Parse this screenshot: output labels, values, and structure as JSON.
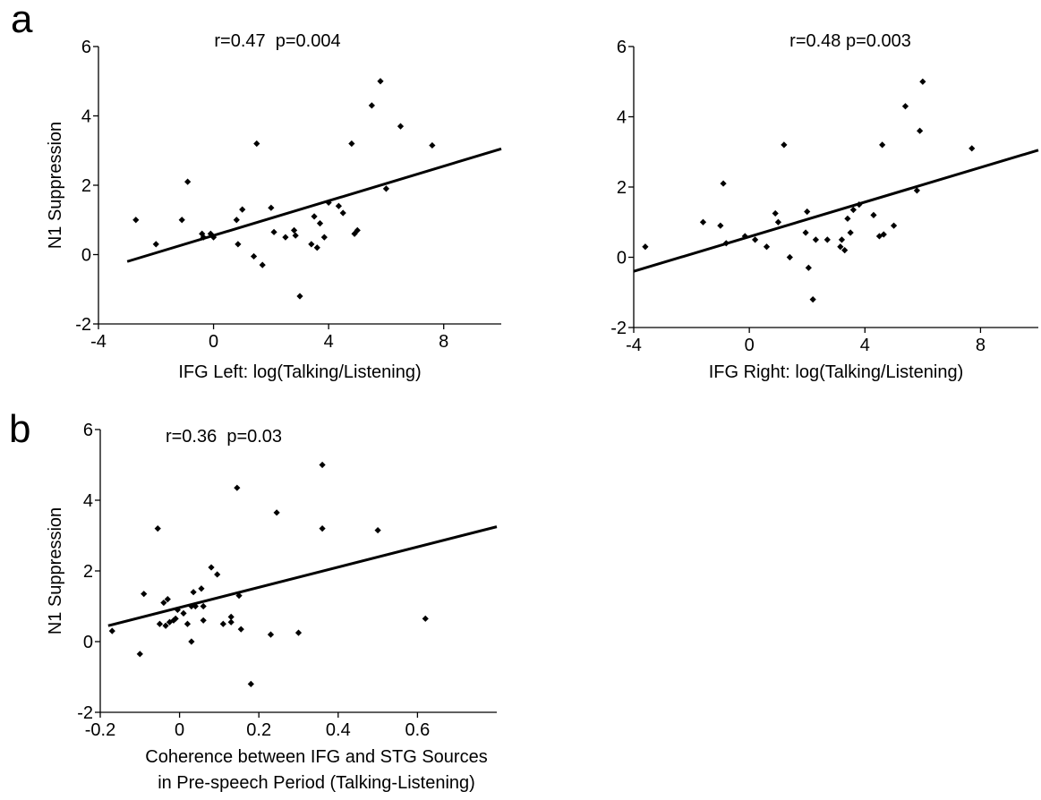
{
  "panel_labels": {
    "a": "a",
    "b": "b"
  },
  "chart_data": [
    {
      "type": "scatter",
      "panel": "a",
      "annotation": "r=0.47  p=0.004",
      "xlabel": "IFG Left: log(Talking/Listening)",
      "ylabel": "N1 Suppression",
      "xlim": [
        -4,
        10
      ],
      "ylim": [
        -2,
        6
      ],
      "xticks": [
        -4,
        0,
        4,
        8
      ],
      "yticks": [
        -2,
        0,
        2,
        4,
        6
      ],
      "xtick_labels": [
        "-4",
        "0",
        "4",
        "8"
      ],
      "ytick_labels": [
        "-2",
        "0",
        "2",
        "4",
        "6"
      ],
      "grid": false,
      "marker_color": "#000000",
      "points": [
        [
          -2.7,
          1.0
        ],
        [
          -2.0,
          0.3
        ],
        [
          -1.1,
          1.0
        ],
        [
          -0.9,
          2.1
        ],
        [
          -0.4,
          0.6
        ],
        [
          -0.35,
          0.5
        ],
        [
          -0.1,
          0.6
        ],
        [
          0.0,
          0.5
        ],
        [
          0.8,
          1.0
        ],
        [
          0.85,
          0.3
        ],
        [
          1.0,
          1.3
        ],
        [
          1.4,
          -0.05
        ],
        [
          1.5,
          3.2
        ],
        [
          1.7,
          -0.3
        ],
        [
          2.0,
          1.35
        ],
        [
          2.1,
          0.65
        ],
        [
          2.5,
          0.5
        ],
        [
          2.8,
          0.7
        ],
        [
          2.85,
          0.55
        ],
        [
          3.0,
          -1.2
        ],
        [
          3.4,
          0.3
        ],
        [
          3.5,
          1.1
        ],
        [
          3.6,
          0.2
        ],
        [
          3.7,
          0.9
        ],
        [
          3.85,
          0.5
        ],
        [
          4.0,
          1.5
        ],
        [
          4.35,
          1.4
        ],
        [
          4.5,
          1.2
        ],
        [
          4.8,
          3.2
        ],
        [
          4.9,
          0.6
        ],
        [
          5.0,
          0.7
        ],
        [
          5.5,
          4.3
        ],
        [
          5.8,
          5.0
        ],
        [
          6.0,
          1.9
        ],
        [
          6.5,
          3.7
        ],
        [
          7.6,
          3.15
        ]
      ],
      "fit_line": {
        "x": [
          -3,
          10
        ],
        "y": [
          -0.2,
          3.05
        ]
      }
    },
    {
      "type": "scatter",
      "panel": "a",
      "annotation": "r=0.48 p=0.003",
      "xlabel": "IFG Right: log(Talking/Listening)",
      "ylabel": "",
      "xlim": [
        -4,
        10
      ],
      "ylim": [
        -2,
        6
      ],
      "xticks": [
        -4,
        0,
        4,
        8
      ],
      "yticks": [
        -2,
        0,
        2,
        4,
        6
      ],
      "xtick_labels": [
        "-4",
        "0",
        "4",
        "8"
      ],
      "ytick_labels": [
        "-2",
        "0",
        "2",
        "4",
        "6"
      ],
      "grid": false,
      "marker_color": "#000000",
      "points": [
        [
          -3.6,
          0.3
        ],
        [
          -1.6,
          1.0
        ],
        [
          -1.0,
          0.9
        ],
        [
          -0.9,
          2.1
        ],
        [
          -0.8,
          0.4
        ],
        [
          -0.15,
          0.6
        ],
        [
          0.2,
          0.5
        ],
        [
          0.6,
          0.3
        ],
        [
          0.9,
          1.25
        ],
        [
          1.0,
          1.0
        ],
        [
          1.2,
          3.2
        ],
        [
          1.4,
          0.0
        ],
        [
          1.95,
          0.7
        ],
        [
          2.0,
          1.3
        ],
        [
          2.05,
          -0.3
        ],
        [
          2.2,
          -1.2
        ],
        [
          2.3,
          0.5
        ],
        [
          2.7,
          0.5
        ],
        [
          3.15,
          0.3
        ],
        [
          3.2,
          0.5
        ],
        [
          3.3,
          0.2
        ],
        [
          3.4,
          1.1
        ],
        [
          3.5,
          0.7
        ],
        [
          3.6,
          1.35
        ],
        [
          3.8,
          1.5
        ],
        [
          4.3,
          1.2
        ],
        [
          4.5,
          0.6
        ],
        [
          4.6,
          3.2
        ],
        [
          4.65,
          0.65
        ],
        [
          5.0,
          0.9
        ],
        [
          5.4,
          4.3
        ],
        [
          5.8,
          1.9
        ],
        [
          5.9,
          3.6
        ],
        [
          6.0,
          5.0
        ],
        [
          7.7,
          3.1
        ]
      ],
      "fit_line": {
        "x": [
          -4,
          10
        ],
        "y": [
          -0.4,
          3.05
        ]
      }
    },
    {
      "type": "scatter",
      "panel": "b",
      "annotation": "r=0.36  p=0.03",
      "xlabel": "Coherence between IFG and STG Sources\nin Pre-speech Period (Talking-Listening)",
      "ylabel": "N1 Suppression",
      "xlim": [
        -0.2,
        0.8
      ],
      "ylim": [
        -2,
        6
      ],
      "xticks": [
        -0.2,
        0,
        0.2,
        0.4,
        0.6
      ],
      "yticks": [
        -2,
        0,
        2,
        4,
        6
      ],
      "xtick_labels": [
        "-0.2",
        "0",
        "0.2",
        "0.4",
        "0.6"
      ],
      "ytick_labels": [
        "-2",
        "0",
        "2",
        "4",
        "6"
      ],
      "grid": false,
      "marker_color": "#000000",
      "points": [
        [
          -0.17,
          0.3
        ],
        [
          -0.1,
          -0.35
        ],
        [
          -0.09,
          1.35
        ],
        [
          -0.055,
          3.2
        ],
        [
          -0.05,
          0.5
        ],
        [
          -0.04,
          1.1
        ],
        [
          -0.035,
          0.45
        ],
        [
          -0.03,
          1.2
        ],
        [
          -0.025,
          0.55
        ],
        [
          -0.015,
          0.6
        ],
        [
          -0.01,
          0.65
        ],
        [
          -0.005,
          0.9
        ],
        [
          0.01,
          0.8
        ],
        [
          0.02,
          0.5
        ],
        [
          0.03,
          1.0
        ],
        [
          0.03,
          0.0
        ],
        [
          0.035,
          1.4
        ],
        [
          0.04,
          1.0
        ],
        [
          0.055,
          1.5
        ],
        [
          0.06,
          1.0
        ],
        [
          0.06,
          0.6
        ],
        [
          0.08,
          2.1
        ],
        [
          0.095,
          1.9
        ],
        [
          0.11,
          0.5
        ],
        [
          0.13,
          0.7
        ],
        [
          0.13,
          0.55
        ],
        [
          0.145,
          4.35
        ],
        [
          0.15,
          1.3
        ],
        [
          0.155,
          0.35
        ],
        [
          0.18,
          -1.2
        ],
        [
          0.23,
          0.2
        ],
        [
          0.245,
          3.65
        ],
        [
          0.3,
          0.25
        ],
        [
          0.36,
          3.2
        ],
        [
          0.36,
          5.0
        ],
        [
          0.5,
          3.15
        ],
        [
          0.62,
          0.65
        ]
      ],
      "fit_line": {
        "x": [
          -0.18,
          0.8
        ],
        "y": [
          0.45,
          3.25
        ]
      }
    }
  ]
}
